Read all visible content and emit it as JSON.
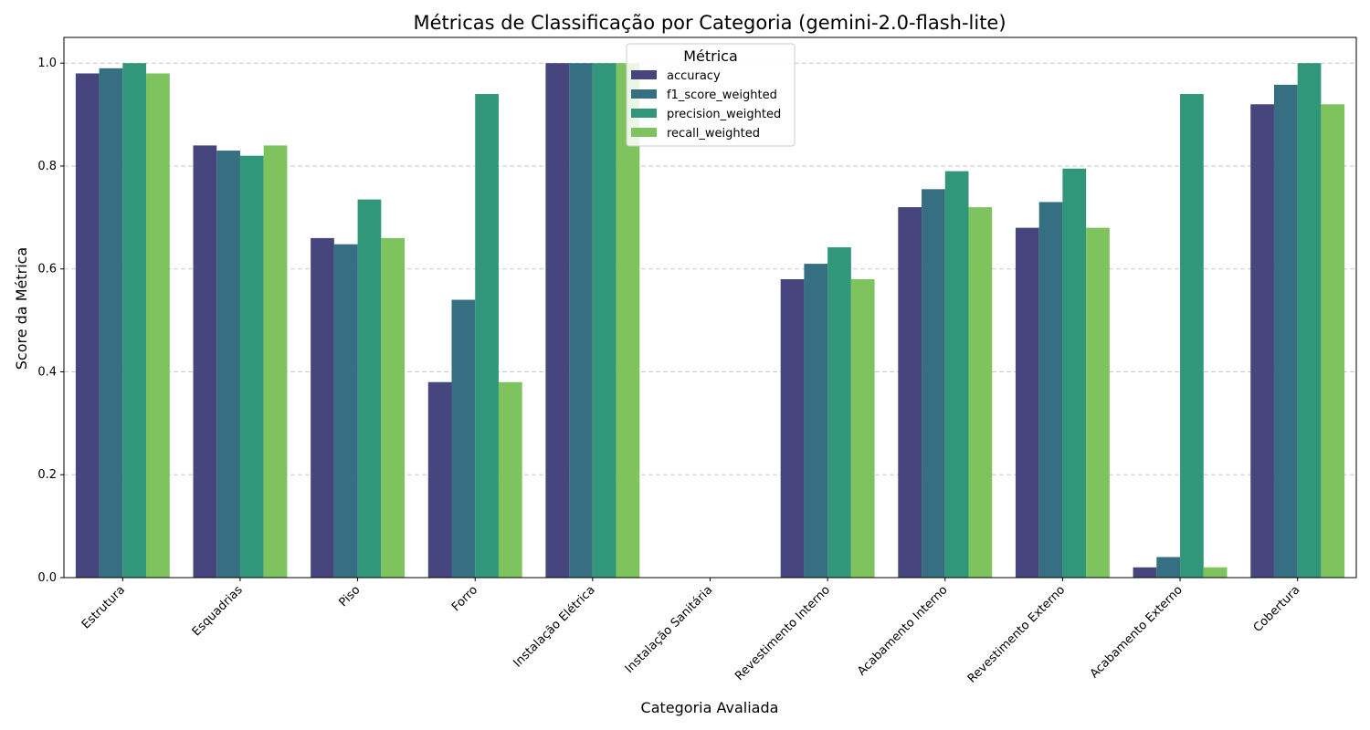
{
  "chart_data": {
    "type": "bar",
    "title": "Métricas de Classificação por Categoria (gemini-2.0-flash-lite)",
    "xlabel": "Categoria Avaliada",
    "ylabel": "Score da Métrica",
    "ylim": [
      0,
      1.05
    ],
    "yticks": [
      "0.0",
      "0.2",
      "0.4",
      "0.6",
      "0.8",
      "1.0"
    ],
    "grid": "horizontal dashed",
    "legend": {
      "title": "Métrica",
      "placement": "top-center"
    },
    "categories": [
      "Estrutura",
      "Esquadrias",
      "Piso",
      "Forro",
      "Instalação Elétrica",
      "Instalação Sanitária",
      "Revestimento Interno",
      "Acabamento Interno",
      "Revestimento Externo",
      "Acabamento Externo",
      "Cobertura"
    ],
    "series": [
      {
        "name": "accuracy",
        "color": "#46457d",
        "values": [
          0.98,
          0.84,
          0.66,
          0.38,
          1.0,
          0,
          0.58,
          0.72,
          0.68,
          0.02,
          0.92
        ]
      },
      {
        "name": "f1_score_weighted",
        "color": "#356f81",
        "values": [
          0.99,
          0.83,
          0.648,
          0.54,
          1.0,
          0,
          0.61,
          0.755,
          0.73,
          0.04,
          0.958
        ]
      },
      {
        "name": "precision_weighted",
        "color": "#32977a",
        "values": [
          1.0,
          0.82,
          0.735,
          0.94,
          1.0,
          0,
          0.642,
          0.79,
          0.795,
          0.94,
          1.0
        ]
      },
      {
        "name": "recall_weighted",
        "color": "#7fc35f",
        "values": [
          0.98,
          0.84,
          0.66,
          0.38,
          1.0,
          0,
          0.58,
          0.72,
          0.68,
          0.02,
          0.92
        ]
      }
    ]
  }
}
